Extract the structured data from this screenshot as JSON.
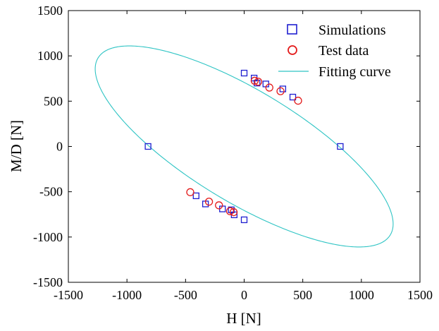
{
  "chart_data": {
    "type": "scatter",
    "title": "",
    "xlabel": "H  [N]",
    "ylabel": "M/D  [N]",
    "xlim": [
      -1500,
      1500
    ],
    "ylim": [
      -1500,
      1500
    ],
    "xticks": [
      -1500,
      -1000,
      -500,
      0,
      500,
      1000,
      1500
    ],
    "yticks": [
      -1500,
      -1000,
      -500,
      0,
      500,
      1000,
      1500
    ],
    "grid": false,
    "legend_position": "top-right",
    "series": [
      {
        "name": "Simulations",
        "marker": "square",
        "color": "#1f1fd0",
        "points": [
          [
            0,
            810
          ],
          [
            85,
            755
          ],
          [
            110,
            700
          ],
          [
            185,
            690
          ],
          [
            330,
            635
          ],
          [
            415,
            545
          ],
          [
            820,
            0
          ],
          [
            -820,
            0
          ],
          [
            -410,
            -545
          ],
          [
            -330,
            -635
          ],
          [
            -185,
            -690
          ],
          [
            -110,
            -700
          ],
          [
            -85,
            -755
          ],
          [
            0,
            -810
          ]
        ]
      },
      {
        "name": "Test data",
        "marker": "circle",
        "color": "#e31a1a",
        "points": [
          [
            90,
            725
          ],
          [
            120,
            715
          ],
          [
            215,
            650
          ],
          [
            310,
            610
          ],
          [
            460,
            505
          ],
          [
            -460,
            -505
          ],
          [
            -300,
            -610
          ],
          [
            -215,
            -650
          ],
          [
            -120,
            -715
          ],
          [
            -90,
            -725
          ]
        ]
      },
      {
        "name": "Fitting curve",
        "type": "ellipse",
        "color": "#2ec4c4",
        "center": [
          0,
          0
        ],
        "semi_major": 1590,
        "semi_minor": 565,
        "angle_deg": -40
      }
    ]
  }
}
